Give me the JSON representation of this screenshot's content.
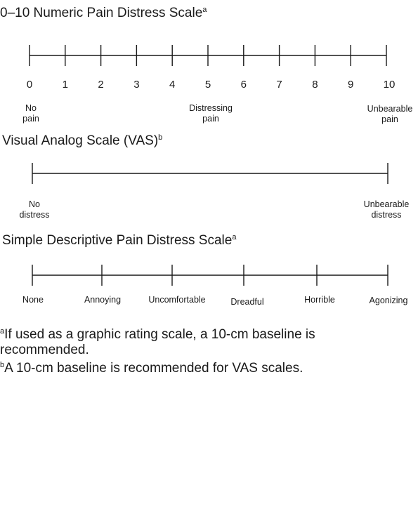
{
  "numeric_scale": {
    "title": "0–10 Numeric Pain Distress Scale",
    "title_sup": "a",
    "ticks": [
      "0",
      "1",
      "2",
      "3",
      "4",
      "5",
      "6",
      "7",
      "8",
      "9",
      "10"
    ],
    "anchors": {
      "left": "No\npain",
      "middle": "Distressing\npain",
      "right": "Unbearable\npain"
    }
  },
  "vas_scale": {
    "title": "Visual Analog Scale (VAS)",
    "title_sup": "b",
    "anchors": {
      "left": "No\ndistress",
      "right": "Unbearable\ndistress"
    }
  },
  "descriptive_scale": {
    "title": "Simple Descriptive Pain Distress Scale",
    "title_sup": "a",
    "labels": [
      "None",
      "Annoying",
      "Uncomfortable",
      "Dreadful",
      "Horrible",
      "Agonizing"
    ]
  },
  "footnotes": {
    "a_marker": "a",
    "a_text": "If used as a graphic rating scale, a 10-cm baseline is recommended.",
    "b_marker": "b",
    "b_text": "A 10-cm baseline is recommended for VAS scales."
  },
  "colors": {
    "line": "#1a1a1a",
    "text": "#1a1a1a",
    "background": "#ffffff"
  }
}
